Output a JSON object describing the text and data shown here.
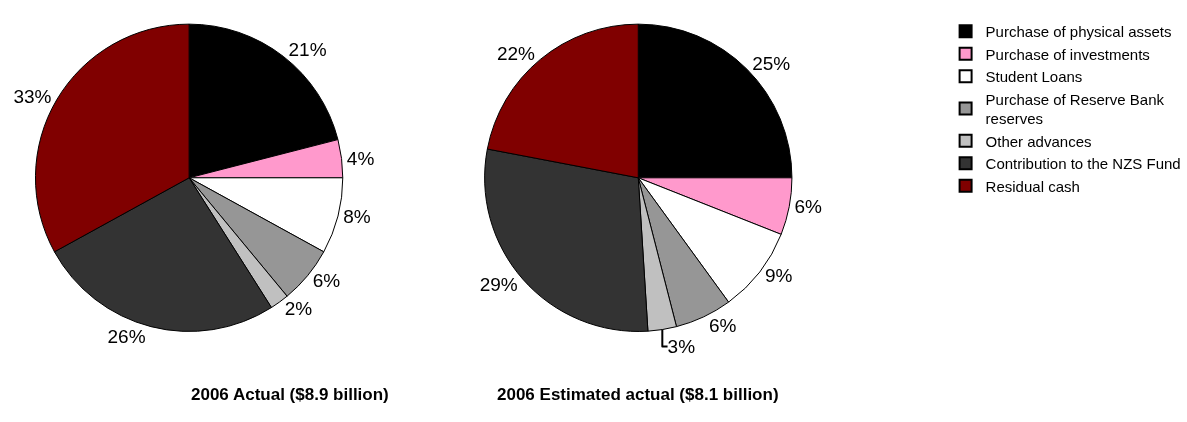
{
  "chart_data": [
    {
      "type": "pie",
      "title": "2006 Actual ($8.9 billion)",
      "categories": [
        "Purchase of physical assets",
        "Purchase of investments",
        "Student Loans",
        "Purchase of Reserve Bank reserves",
        "Other advances",
        "Contribution to the NZS Fund",
        "Residual cash"
      ],
      "values": [
        21,
        4,
        8,
        6,
        2,
        26,
        33
      ],
      "value_labels": [
        "21%",
        "4%",
        "8%",
        "6%",
        "2%",
        "26%",
        "33%"
      ],
      "colors": [
        "#000000",
        "#ff99cc",
        "#ffffff",
        "#969696",
        "#c0c0c0",
        "#333333",
        "#800000"
      ],
      "legend": "right"
    },
    {
      "type": "pie",
      "title": "2006 Estimated actual ($8.1 billion)",
      "categories": [
        null,
        null,
        null,
        null,
        null,
        null,
        null
      ],
      "values": [
        25,
        6,
        9,
        6,
        3,
        29,
        22
      ],
      "value_labels": [
        "25%",
        "6%",
        "9%",
        "6%",
        "3%",
        "29%",
        "22%"
      ],
      "colors": [
        "#000000",
        "#ff99cc",
        "#ffffff",
        "#969696",
        "#c0c0c0",
        "#333333",
        "#800000"
      ],
      "legend": false
    }
  ]
}
